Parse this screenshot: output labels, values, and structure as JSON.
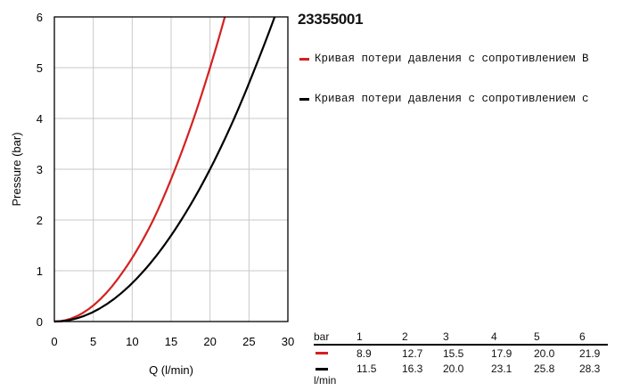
{
  "chart_data": {
    "type": "line",
    "id": "23355001",
    "xlabel": "Q (l/min)",
    "ylabel": "Pressure (bar)",
    "xlim": [
      0,
      30
    ],
    "ylim": [
      0,
      6
    ],
    "x_ticks": [
      "0",
      "5",
      "10",
      "15",
      "20",
      "25",
      "30"
    ],
    "y_ticks": [
      "0",
      "1",
      "2",
      "3",
      "4",
      "5",
      "6"
    ],
    "grid": true,
    "series": [
      {
        "name": "Кривая потери давления с сопротивлением B",
        "color": "#d42020",
        "x": [
          0,
          8.9,
          12.7,
          15.5,
          17.9,
          20.0,
          21.9
        ],
        "y": [
          0,
          1,
          2,
          3,
          4,
          5,
          6
        ]
      },
      {
        "name": "Кривая потери давления с сопротивлением с",
        "color": "#000000",
        "x": [
          0,
          11.5,
          16.3,
          20.0,
          23.1,
          25.8,
          28.3
        ],
        "y": [
          0,
          1,
          2,
          3,
          4,
          5,
          6
        ]
      }
    ],
    "table": {
      "header_label": "bar",
      "unit_label": "l/min",
      "columns": [
        "1",
        "2",
        "3",
        "4",
        "5",
        "6"
      ],
      "rows": [
        {
          "color": "#d42020",
          "values": [
            "8.9",
            "12.7",
            "15.5",
            "17.9",
            "20.0",
            "21.9"
          ]
        },
        {
          "color": "#000000",
          "values": [
            "11.5",
            "16.3",
            "20.0",
            "23.1",
            "25.8",
            "28.3"
          ]
        }
      ]
    }
  }
}
